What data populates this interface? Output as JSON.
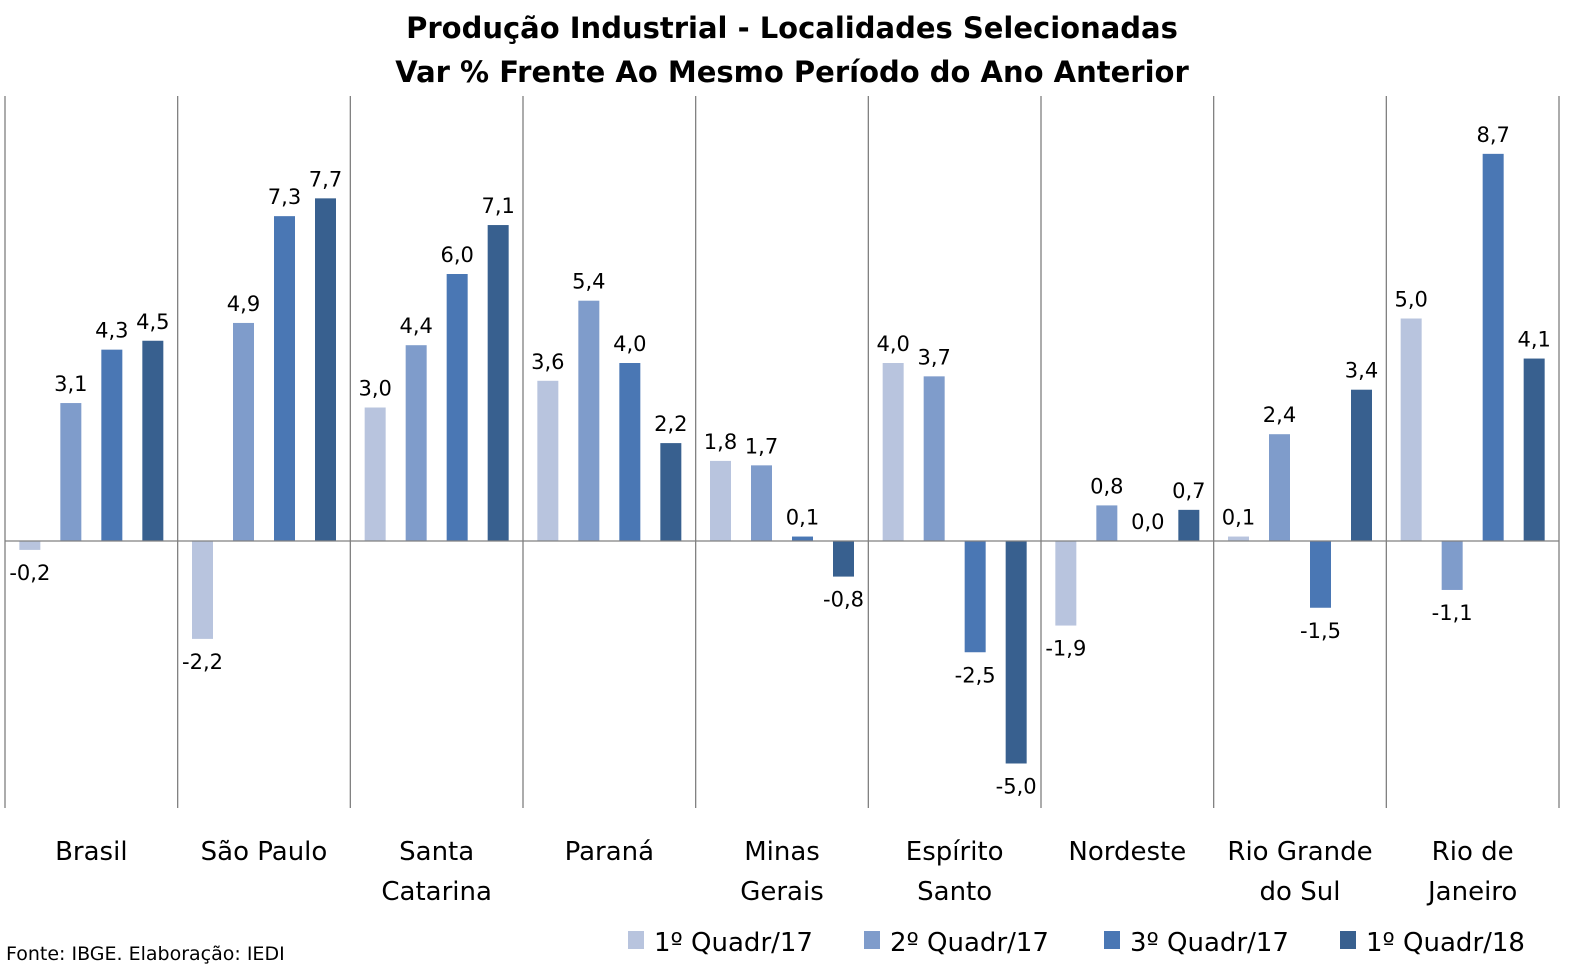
{
  "source_note": "Fonte: IBGE. Elaboração: IEDI",
  "chart_data": {
    "type": "bar",
    "title": "Produção Industrial - Localidades Selecionadas",
    "subtitle": "Var % Frente Ao Mesmo Período do Ano Anterior",
    "categories": [
      [
        "Brasil"
      ],
      [
        "São Paulo"
      ],
      [
        "Santa",
        "Catarina"
      ],
      [
        "Paraná"
      ],
      [
        "Minas",
        "Gerais"
      ],
      [
        "Espírito",
        "Santo"
      ],
      [
        "Nordeste"
      ],
      [
        "Rio Grande",
        "do Sul"
      ],
      [
        "Rio de",
        "Janeiro"
      ]
    ],
    "series": [
      {
        "name": "1º Quadr/17",
        "color": "#b8c4de",
        "values": [
          -0.2,
          -2.2,
          3.0,
          3.6,
          1.8,
          4.0,
          -1.9,
          0.1,
          5.0
        ]
      },
      {
        "name": "2º Quadr/17",
        "color": "#7f9ccb",
        "values": [
          3.1,
          4.9,
          4.4,
          5.4,
          1.7,
          3.7,
          0.8,
          2.4,
          -1.1
        ]
      },
      {
        "name": "3º Quadr/17",
        "color": "#4a77b4",
        "values": [
          4.3,
          7.3,
          6.0,
          4.0,
          0.1,
          -2.5,
          0.0,
          -1.5,
          8.7
        ]
      },
      {
        "name": "1º Quadr/18",
        "color": "#38608f",
        "values": [
          4.5,
          7.7,
          7.1,
          2.2,
          -0.8,
          -5.0,
          0.7,
          3.4,
          4.1
        ]
      }
    ],
    "ylim": [
      -6,
      10
    ],
    "decimal_separator": ",",
    "gridlines": false,
    "category_separators": true,
    "legend_position": "bottom-right"
  }
}
